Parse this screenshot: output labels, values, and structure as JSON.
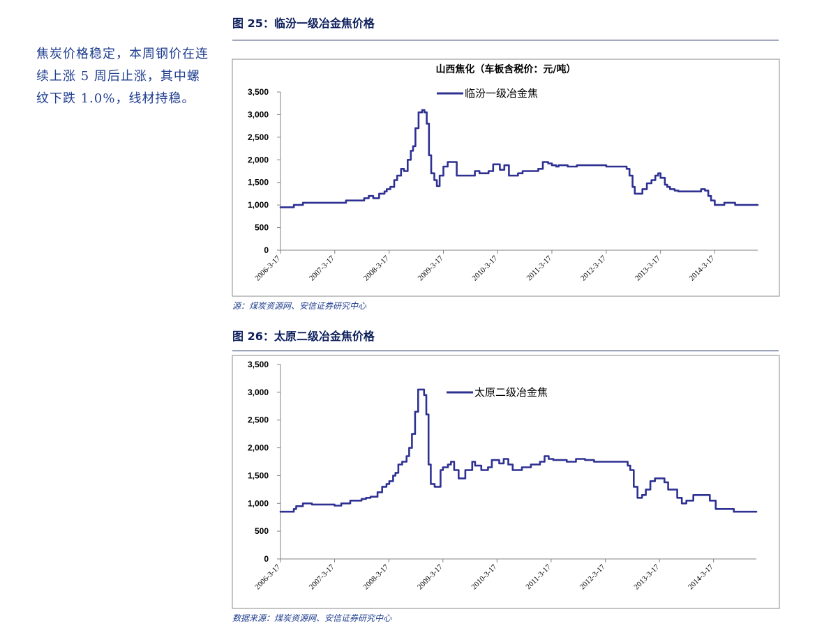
{
  "sidebar": {
    "text": "焦炭价格稳定，本周钢价在连续上涨 5 周后止涨，其中螺纹下跌 1.0%，线材持稳。"
  },
  "colors": {
    "line": "#2e3192",
    "heading": "#0d1f5c",
    "note": "#1f3d8f",
    "border": "#8a8a8a"
  },
  "figures": [
    {
      "title": "图 25：临汾一级冶金焦价格",
      "source": "源：煤炭资源网、安信证券研究中心"
    },
    {
      "title": "图 26：太原二级冶金焦价格",
      "source": "数据来源：煤炭资源网、安信证券研究中心"
    }
  ],
  "chart_data": [
    {
      "type": "line",
      "title": "山西焦化（车板含税价：元/吨）",
      "legend_position": "top-left inside",
      "grid": false,
      "ylim": [
        0,
        3500
      ],
      "yticks": [
        "0",
        "500",
        "1,000",
        "1,500",
        "2,000",
        "2,500",
        "3,000",
        "3,500"
      ],
      "xlim": [
        "2006-03-17",
        "2014-12-31"
      ],
      "xticks": [
        "2006-3-17",
        "2007-3-17",
        "2008-3-17",
        "2009-3-17",
        "2010-3-17",
        "2011-3-17",
        "2012-3-17",
        "2013-3-17",
        "2014-3-17"
      ],
      "series": [
        {
          "name": "临汾一级冶金焦",
          "x": [
            "2006-03-17",
            "2006-05-15",
            "2006-06-15",
            "2006-07-01",
            "2006-08-15",
            "2007-03-01",
            "2007-03-17",
            "2007-06-01",
            "2007-07-15",
            "2007-10-01",
            "2007-11-01",
            "2007-12-01",
            "2008-01-10",
            "2008-02-15",
            "2008-03-01",
            "2008-03-25",
            "2008-04-20",
            "2008-05-10",
            "2008-06-05",
            "2008-06-25",
            "2008-07-20",
            "2008-08-10",
            "2008-08-25",
            "2008-09-10",
            "2008-10-01",
            "2008-10-25",
            "2008-11-10",
            "2008-11-25",
            "2008-12-10",
            "2008-12-25",
            "2009-01-15",
            "2009-02-01",
            "2009-02-20",
            "2009-03-17",
            "2009-04-15",
            "2009-06-15",
            "2009-07-01",
            "2009-08-01",
            "2009-10-15",
            "2009-11-15",
            "2009-12-15",
            "2010-01-15",
            "2010-02-15",
            "2010-04-01",
            "2010-05-01",
            "2010-06-01",
            "2010-08-01",
            "2010-09-01",
            "2010-11-01",
            "2010-12-15",
            "2011-01-15",
            "2011-02-20",
            "2011-03-17",
            "2011-04-15",
            "2011-05-01",
            "2011-07-01",
            "2011-08-01",
            "2011-09-01",
            "2012-01-15",
            "2012-03-17",
            "2012-05-01",
            "2012-06-01",
            "2012-07-01",
            "2012-08-01",
            "2012-08-20",
            "2012-09-10",
            "2012-09-25",
            "2012-10-15",
            "2012-11-15",
            "2012-12-15",
            "2013-01-15",
            "2013-02-10",
            "2013-03-01",
            "2013-03-17",
            "2013-04-15",
            "2013-05-01",
            "2013-05-20",
            "2013-06-20",
            "2013-07-15",
            "2013-08-15",
            "2013-09-15",
            "2013-10-20",
            "2013-12-15",
            "2014-01-10",
            "2014-02-01",
            "2014-02-20",
            "2014-03-17",
            "2014-04-01",
            "2014-05-01",
            "2014-05-20",
            "2014-06-15",
            "2014-08-01",
            "2014-09-01",
            "2014-10-01",
            "2014-12-31"
          ],
          "values": [
            950,
            950,
            1000,
            1000,
            1050,
            1050,
            1050,
            1100,
            1100,
            1150,
            1200,
            1150,
            1250,
            1300,
            1350,
            1400,
            1550,
            1650,
            1800,
            1750,
            2000,
            2200,
            2300,
            2700,
            3050,
            3100,
            3050,
            2800,
            2100,
            1700,
            1550,
            1420,
            1650,
            1850,
            1950,
            1650,
            1650,
            1650,
            1750,
            1700,
            1700,
            1750,
            1900,
            1780,
            1880,
            1650,
            1700,
            1750,
            1750,
            1800,
            1950,
            1920,
            1880,
            1850,
            1880,
            1850,
            1850,
            1880,
            1880,
            1850,
            1850,
            1850,
            1850,
            1800,
            1650,
            1400,
            1250,
            1250,
            1350,
            1480,
            1550,
            1650,
            1700,
            1600,
            1450,
            1400,
            1350,
            1320,
            1300,
            1300,
            1300,
            1300,
            1350,
            1320,
            1200,
            1100,
            1000,
            1000,
            1000,
            1050,
            1050,
            1000,
            1000,
            1000,
            1000
          ]
        }
      ]
    },
    {
      "type": "line",
      "title": "",
      "legend_position": "top-center inside",
      "grid": false,
      "ylim": [
        0,
        3500
      ],
      "yticks": [
        "0",
        "500",
        "1,000",
        "1,500",
        "2,000",
        "2,500",
        "3,000",
        "3,500"
      ],
      "xlim": [
        "2006-03-17",
        "2014-12-31"
      ],
      "xticks": [
        "2006-3-17",
        "2007-3-17",
        "2008-3-17",
        "2009-3-17",
        "2010-3-17",
        "2011-3-17",
        "2012-3-17",
        "2013-3-17",
        "2014-3-17"
      ],
      "series": [
        {
          "name": "太原二级冶金焦",
          "x": [
            "2006-03-17",
            "2006-05-15",
            "2006-06-15",
            "2006-07-01",
            "2006-08-15",
            "2006-10-15",
            "2007-03-17",
            "2007-05-01",
            "2007-07-01",
            "2007-09-15",
            "2007-10-15",
            "2007-11-15",
            "2008-01-01",
            "2008-02-01",
            "2008-03-01",
            "2008-03-20",
            "2008-04-15",
            "2008-05-01",
            "2008-05-20",
            "2008-06-15",
            "2008-07-15",
            "2008-08-01",
            "2008-08-20",
            "2008-09-10",
            "2008-10-01",
            "2008-10-25",
            "2008-11-10",
            "2008-11-25",
            "2008-12-10",
            "2008-12-25",
            "2009-01-20",
            "2009-03-01",
            "2009-03-17",
            "2009-04-20",
            "2009-05-10",
            "2009-06-01",
            "2009-07-01",
            "2009-08-15",
            "2009-10-01",
            "2009-10-20",
            "2009-12-01",
            "2010-01-15",
            "2010-02-10",
            "2010-04-01",
            "2010-05-01",
            "2010-06-01",
            "2010-07-01",
            "2010-09-01",
            "2010-11-01",
            "2011-01-01",
            "2011-02-01",
            "2011-03-01",
            "2011-04-01",
            "2011-07-01",
            "2011-09-01",
            "2011-11-01",
            "2012-01-01",
            "2012-04-01",
            "2012-07-01",
            "2012-08-15",
            "2012-09-01",
            "2012-09-25",
            "2012-10-20",
            "2012-11-20",
            "2012-12-15",
            "2013-01-15",
            "2013-02-15",
            "2013-03-10",
            "2013-04-01",
            "2013-04-20",
            "2013-05-15",
            "2013-06-20",
            "2013-07-15",
            "2013-08-15",
            "2013-09-15",
            "2013-11-01",
            "2014-01-01",
            "2014-02-01",
            "2014-02-20",
            "2014-04-01",
            "2014-05-01",
            "2014-08-01",
            "2014-10-01",
            "2014-12-31"
          ],
          "values": [
            850,
            850,
            900,
            950,
            1000,
            980,
            960,
            1000,
            1050,
            1080,
            1100,
            1120,
            1200,
            1300,
            1350,
            1400,
            1500,
            1550,
            1700,
            1750,
            1850,
            2000,
            2250,
            2650,
            3050,
            3050,
            2950,
            2600,
            1700,
            1350,
            1300,
            1600,
            1650,
            1700,
            1750,
            1600,
            1450,
            1600,
            1750,
            1680,
            1600,
            1650,
            1780,
            1720,
            1800,
            1700,
            1600,
            1650,
            1700,
            1750,
            1850,
            1800,
            1780,
            1750,
            1800,
            1780,
            1750,
            1750,
            1750,
            1680,
            1600,
            1300,
            1100,
            1150,
            1250,
            1400,
            1450,
            1450,
            1450,
            1380,
            1250,
            1250,
            1100,
            1000,
            1050,
            1150,
            1150,
            1150,
            1050,
            900,
            900,
            850,
            850,
            850
          ]
        }
      ]
    }
  ]
}
